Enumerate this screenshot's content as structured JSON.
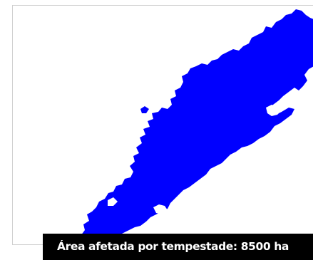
{
  "map": {
    "caption": "Área afetada por tempestade: 8500 ha",
    "affected_area_color": "#0000ff",
    "background_color": "#ffffff",
    "caption_background": "#000000",
    "caption_text_color": "#ffffff"
  }
}
